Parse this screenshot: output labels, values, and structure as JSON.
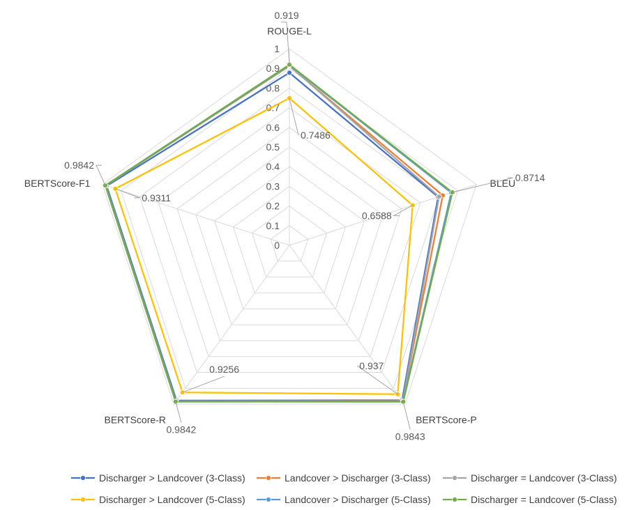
{
  "chart_data": {
    "type": "radar",
    "axes": [
      "ROUGE-L",
      "BLEU",
      "BERTScore-P",
      "BERTScore-R",
      "BERTScore-F1"
    ],
    "rlim": [
      0,
      1
    ],
    "ticks": [
      "0",
      "0.1",
      "0.2",
      "0.3",
      "0.4",
      "0.5",
      "0.6",
      "0.7",
      "0.8",
      "0.9",
      "1"
    ],
    "grid": true,
    "legend_position": "bottom",
    "series": [
      {
        "name": "Discharger > Landcover (3-Class)",
        "color": "#4472C4",
        "values": [
          0.878,
          0.795,
          0.975,
          0.977,
          0.977
        ]
      },
      {
        "name": "Landcover > Discharger (3-Class)",
        "color": "#ED7D31",
        "values": [
          0.912,
          0.82,
          0.98,
          0.982,
          0.982
        ]
      },
      {
        "name": "Discharger = Landcover (3-Class)",
        "color": "#A5A5A5",
        "values": [
          0.914,
          0.8,
          0.981,
          0.982,
          0.982
        ]
      },
      {
        "name": "Discharger > Landcover (5-Class)",
        "color": "#FFC000",
        "values": [
          0.7486,
          0.6588,
          0.937,
          0.9256,
          0.9311
        ]
      },
      {
        "name": "Landcover > Discharger (5-Class)",
        "color": "#5B9BD5",
        "values": [
          0.917,
          0.865,
          0.983,
          0.984,
          0.984
        ]
      },
      {
        "name": "Discharger = Landcover (5-Class)",
        "color": "#70AD47",
        "values": [
          0.919,
          0.8714,
          0.9843,
          0.9842,
          0.9842
        ]
      }
    ],
    "annotations": [
      {
        "axis": "ROUGE-L",
        "value": 0.919,
        "text": "0.919"
      },
      {
        "axis": "ROUGE-L",
        "value": 0.7486,
        "text": "0.7486"
      },
      {
        "axis": "BLEU",
        "value": 0.8714,
        "text": "0.8714"
      },
      {
        "axis": "BLEU",
        "value": 0.6588,
        "text": "0.6588"
      },
      {
        "axis": "BERTScore-P",
        "value": 0.9843,
        "text": "0.9843"
      },
      {
        "axis": "BERTScore-P",
        "value": 0.937,
        "text": "0.937"
      },
      {
        "axis": "BERTScore-R",
        "value": 0.9842,
        "text": "0.9842"
      },
      {
        "axis": "BERTScore-R",
        "value": 0.9256,
        "text": "0.9256"
      },
      {
        "axis": "BERTScore-F1",
        "value": 0.9842,
        "text": "0.9842"
      },
      {
        "axis": "BERTScore-F1",
        "value": 0.9311,
        "text": "0.9311"
      }
    ]
  }
}
